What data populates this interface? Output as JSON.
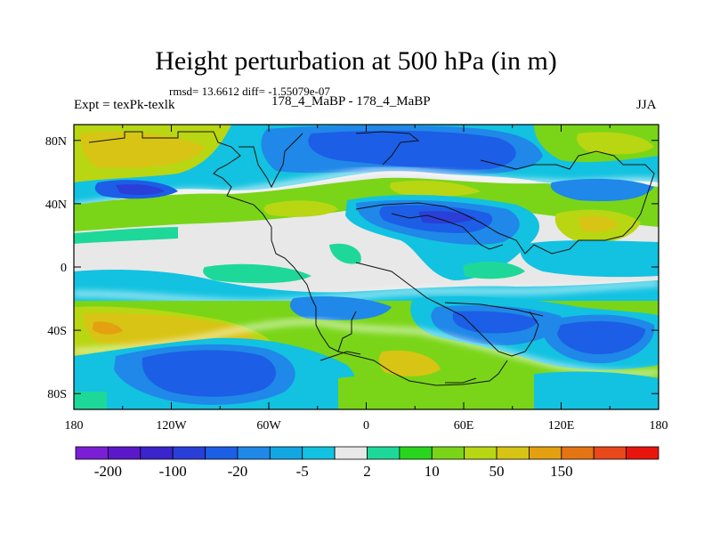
{
  "chart_data": {
    "type": "heatmap",
    "title": "Height perturbation at 500 hPa (in m)",
    "stats_text": "rmsd= 13.6612 diff= -1.55079e-07",
    "left_label": "Expt = texPk-texlk",
    "center_label": "178_4_MaBP - 178_4_MaBP",
    "right_label": "JJA",
    "x_ticks": [
      "180",
      "120W",
      "60W",
      "0",
      "60E",
      "120E",
      "180"
    ],
    "y_ticks": [
      "80N",
      "40N",
      "0",
      "40S",
      "80S"
    ],
    "xlim": [
      -180,
      180
    ],
    "ylim": [
      -90,
      90
    ],
    "colorbar": {
      "labels": [
        "-200",
        "-100",
        "-20",
        "-5",
        "2",
        "10",
        "50",
        "150"
      ],
      "colors": [
        "#7a1fd6",
        "#5a18c8",
        "#3a24cc",
        "#2a3ed8",
        "#1c5ee6",
        "#1f88e8",
        "#12a6e3",
        "#12c2e0",
        "#e8e8e8",
        "#1ed89a",
        "#2ad51e",
        "#7ad518",
        "#b9d612",
        "#d8c414",
        "#e3a010",
        "#e57414",
        "#e8481a",
        "#e8140e"
      ]
    }
  }
}
